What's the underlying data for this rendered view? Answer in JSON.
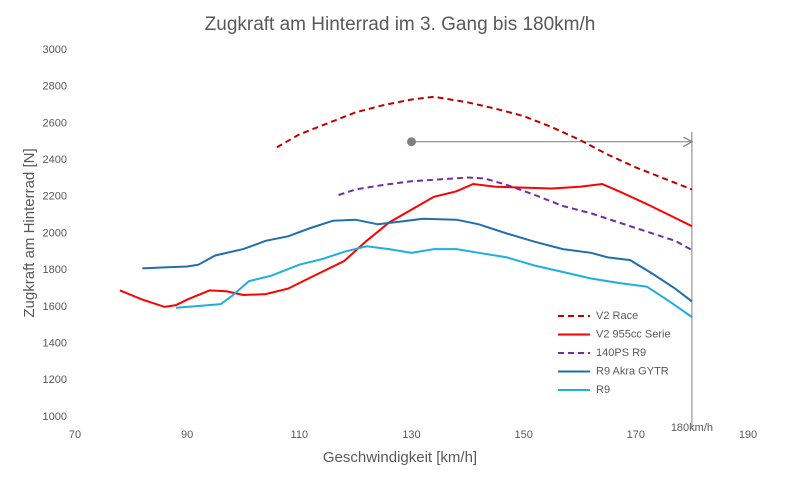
{
  "chart_data": {
    "type": "line",
    "title": "Zugkraft am Hinterrad im 3. Gang bis 180km/h",
    "x_label": "Geschwindigkeit [km/h]",
    "y_label": "Zugkraft am Hinterrad [N]",
    "xlim": [
      70,
      190
    ],
    "xticks": [
      70,
      90,
      110,
      130,
      150,
      170,
      190
    ],
    "ylim": [
      1000,
      3000
    ],
    "yticks": [
      1000,
      1200,
      1400,
      1600,
      1800,
      2000,
      2200,
      2400,
      2600,
      2800,
      3000
    ],
    "annotation": {
      "label": "180km/h",
      "x": [
        130,
        180
      ],
      "y": 2500
    },
    "series": [
      {
        "name": "V2 Race",
        "color": "#c00000",
        "dash": true,
        "x": [
          106,
          110,
          115,
          120,
          125,
          130,
          134,
          140,
          145,
          150,
          155,
          160,
          165,
          170,
          175,
          180
        ],
        "values": [
          2470,
          2540,
          2600,
          2660,
          2700,
          2730,
          2745,
          2715,
          2680,
          2640,
          2580,
          2510,
          2430,
          2360,
          2300,
          2240
        ]
      },
      {
        "name": "V2 955cc Serie",
        "color": "#ff0000",
        "dash": false,
        "x": [
          78,
          82,
          86,
          88,
          90,
          94,
          97,
          100,
          104,
          108,
          112,
          118,
          122,
          126,
          130,
          134,
          138,
          141,
          145,
          150,
          155,
          160,
          164,
          167,
          172,
          176,
          180
        ],
        "values": [
          1690,
          1640,
          1600,
          1610,
          1640,
          1690,
          1685,
          1665,
          1670,
          1700,
          1760,
          1850,
          1960,
          2060,
          2130,
          2200,
          2230,
          2270,
          2255,
          2250,
          2245,
          2255,
          2270,
          2230,
          2160,
          2100,
          2040
        ]
      },
      {
        "name": "140PS R9",
        "color": "#7030a0",
        "dash": true,
        "x": [
          117,
          120,
          125,
          130,
          135,
          140,
          143,
          147,
          152,
          157,
          162,
          167,
          172,
          177,
          180
        ],
        "values": [
          2210,
          2240,
          2265,
          2285,
          2295,
          2305,
          2300,
          2265,
          2210,
          2150,
          2110,
          2060,
          2010,
          1960,
          1910
        ]
      },
      {
        "name": "R9 Akra GYTR",
        "color": "#1f6fb0",
        "dash": false,
        "x": [
          82,
          86,
          90,
          92,
          95,
          100,
          104,
          108,
          112,
          116,
          120,
          124,
          128,
          132,
          138,
          142,
          147,
          152,
          157,
          162,
          165,
          169,
          173,
          177,
          180
        ],
        "values": [
          1810,
          1815,
          1820,
          1830,
          1880,
          1915,
          1960,
          1985,
          2030,
          2070,
          2075,
          2050,
          2065,
          2080,
          2075,
          2050,
          2000,
          1955,
          1915,
          1895,
          1870,
          1855,
          1780,
          1700,
          1630
        ]
      },
      {
        "name": "R9",
        "color": "#1eaee0",
        "dash": false,
        "x": [
          88,
          92,
          96,
          98,
          101,
          105,
          110,
          114,
          118,
          122,
          126,
          130,
          134,
          138,
          142,
          147,
          152,
          157,
          162,
          167,
          172,
          176,
          180
        ],
        "values": [
          1595,
          1605,
          1615,
          1660,
          1740,
          1770,
          1830,
          1860,
          1900,
          1930,
          1915,
          1895,
          1915,
          1915,
          1895,
          1870,
          1825,
          1790,
          1755,
          1730,
          1710,
          1630,
          1545
        ]
      }
    ]
  }
}
